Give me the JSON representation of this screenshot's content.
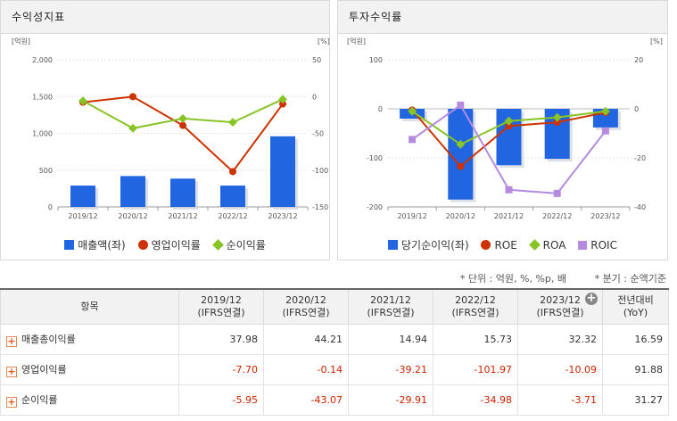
{
  "left_panel": {
    "title": "수익성지표",
    "left_unit": "[억원]",
    "right_unit": "[%]",
    "legend": [
      {
        "label": "매출액(좌)",
        "color": "#2166e0",
        "marker": "bar"
      },
      {
        "label": "영업이익률",
        "color": "#cc3300",
        "marker": "circle"
      },
      {
        "label": "순이익률",
        "color": "#88c425",
        "marker": "diamond"
      }
    ]
  },
  "right_panel": {
    "title": "투자수익률",
    "left_unit": "[억원]",
    "right_unit": "[%]",
    "legend": [
      {
        "label": "당기순이익(좌)",
        "color": "#2166e0",
        "marker": "bar"
      },
      {
        "label": "ROE",
        "color": "#cc3300",
        "marker": "circle"
      },
      {
        "label": "ROA",
        "color": "#88c425",
        "marker": "diamond"
      },
      {
        "label": "ROIC",
        "color": "#b58be0",
        "marker": "square"
      }
    ]
  },
  "chart_data": [
    {
      "type": "bar",
      "title": "수익성지표",
      "categories": [
        "2019/12",
        "2020/12",
        "2021/12",
        "2022/12",
        "2023/12"
      ],
      "left_axis": {
        "unit": "[억원]",
        "min": 0,
        "max": 2000,
        "ticks": [
          "0",
          "500",
          "1,000",
          "1,500",
          "2,000"
        ],
        "tick_values": [
          0,
          500,
          1000,
          1500,
          2000
        ]
      },
      "right_axis": {
        "unit": "[%]",
        "min": -150,
        "max": 50,
        "ticks": [
          "-150",
          "-100",
          "-50",
          "0",
          "50"
        ],
        "tick_values": [
          -150,
          -100,
          -50,
          0,
          50
        ]
      },
      "series": [
        {
          "name": "매출액(좌)",
          "type": "bar",
          "axis": "left",
          "color": "#2166e0",
          "values": [
            290,
            420,
            385,
            290,
            960
          ]
        },
        {
          "name": "영업이익률",
          "type": "line",
          "axis": "right",
          "color": "#cc3300",
          "marker": "circle",
          "values": [
            -7.7,
            -0.14,
            -39.21,
            -101.97,
            -10.09
          ]
        },
        {
          "name": "순이익률",
          "type": "line",
          "axis": "right",
          "color": "#88c425",
          "marker": "diamond",
          "values": [
            -5.95,
            -43.07,
            -29.91,
            -34.98,
            -3.71
          ]
        }
      ]
    },
    {
      "type": "bar",
      "title": "투자수익률",
      "categories": [
        "2019/12",
        "2020/12",
        "2021/12",
        "2022/12",
        "2023/12"
      ],
      "left_axis": {
        "unit": "[억원]",
        "min": -200,
        "max": 100,
        "ticks": [
          "-200",
          "-100",
          "0",
          "100"
        ],
        "tick_values": [
          -200,
          -100,
          0,
          100
        ]
      },
      "right_axis": {
        "unit": "[%]",
        "min": -40,
        "max": 20,
        "ticks": [
          "-40",
          "-20",
          "0",
          "20"
        ],
        "tick_values": [
          -40,
          -20,
          0,
          20
        ]
      },
      "series": [
        {
          "name": "당기순이익(좌)",
          "type": "bar",
          "axis": "left",
          "color": "#2166e0",
          "values": [
            -20,
            -185,
            -115,
            -102,
            -38
          ]
        },
        {
          "name": "ROE",
          "type": "line",
          "axis": "right",
          "color": "#cc3300",
          "marker": "circle",
          "values": [
            -0.5,
            -23.5,
            -7,
            -5.5,
            -1.5
          ]
        },
        {
          "name": "ROA",
          "type": "line",
          "axis": "right",
          "color": "#88c425",
          "marker": "diamond",
          "values": [
            -1,
            -14.5,
            -5,
            -3.5,
            -1
          ]
        },
        {
          "name": "ROIC",
          "type": "line",
          "axis": "right",
          "color": "#b58be0",
          "marker": "square",
          "values": [
            -12.5,
            1.5,
            -33,
            -34.5,
            -9
          ]
        }
      ]
    }
  ],
  "notes": {
    "unit": "* 단위 : 억원, %, %p, 배",
    "basis": "* 분기 : 순액기준"
  },
  "table": {
    "header_item": "항목",
    "columns": [
      {
        "period": "2019/12",
        "basis": "(IFRS연결)"
      },
      {
        "period": "2020/12",
        "basis": "(IFRS연결)"
      },
      {
        "period": "2021/12",
        "basis": "(IFRS연결)"
      },
      {
        "period": "2022/12",
        "basis": "(IFRS연결)"
      },
      {
        "period": "2023/12",
        "basis": "(IFRS연결)"
      },
      {
        "period": "전년대비",
        "basis": "(YoY)"
      }
    ],
    "rows": [
      {
        "label": "매출총이익률",
        "values": [
          "37.98",
          "44.21",
          "14.94",
          "15.73",
          "32.32",
          "16.59"
        ]
      },
      {
        "label": "영업이익률",
        "values": [
          "-7.70",
          "-0.14",
          "-39.21",
          "-101.97",
          "-10.09",
          "91.88"
        ]
      },
      {
        "label": "순이익률",
        "values": [
          "-5.95",
          "-43.07",
          "-29.91",
          "-34.98",
          "-3.71",
          "31.27"
        ]
      }
    ]
  }
}
